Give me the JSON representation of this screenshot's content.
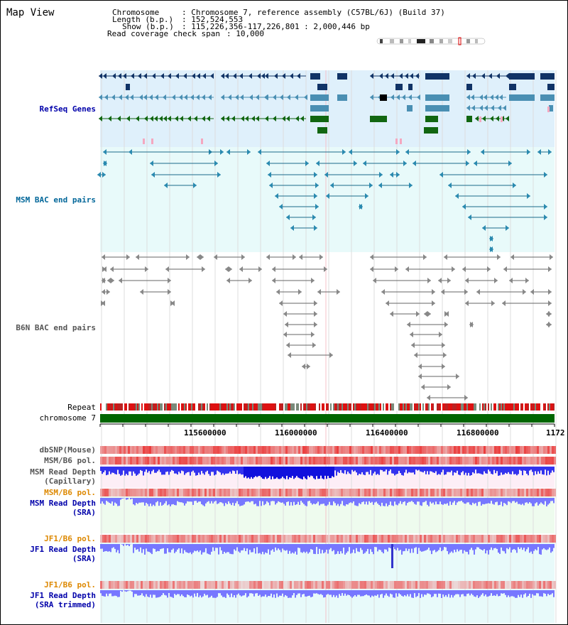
{
  "app": {
    "title": "Map View"
  },
  "header": {
    "chromosome_key": "Chromosome",
    "chromosome_val": ": Chromosome 7, reference assembly (C57BL/6J) (Build 37)",
    "length_key": "Length (b.p.)",
    "length_val": ": 152,524,553",
    "show_key": "Show (b.p.)",
    "show_val": ": 115,226,356-117,226,801 : 2,000,446 bp",
    "coverage_key": "Read coverage check span",
    "coverage_val": ": 10,000"
  },
  "tracks": {
    "refseq": "RefSeq Genes",
    "msm_bac": "MSM BAC end pairs",
    "b6n_bac": "B6N BAC end pairs",
    "repeat": "Repeat",
    "chromosome": "chromosome 7",
    "dbsnp": "dbSNP(Mouse)",
    "msm_pol_1": "MSM/B6 pol.",
    "msm_depth_cap_1": "MSM Read Depth",
    "msm_depth_cap_2": "(Capillary)",
    "msm_pol_2": "MSM/B6 pol.",
    "msm_depth_sra_1": "MSM Read Depth",
    "msm_depth_sra_2": "(SRA)",
    "jf1_pol_1": "JF1/B6 pol.",
    "jf1_depth_sra_1": "JF1 Read Depth",
    "jf1_depth_sra_2": "(SRA)",
    "jf1_pol_2": "JF1/B6 pol.",
    "jf1_depth_trim_1": "JF1 Read Depth",
    "jf1_depth_trim_2": "(SRA trimmed)"
  },
  "axis": {
    "ticks": [
      "115600000",
      "116000000",
      "116400000",
      "116800000",
      "1172"
    ]
  },
  "colors": {
    "refseq_label": "#0000aa",
    "msm_bac_label": "#006699",
    "b6n_bac_label": "#555555",
    "pol_orange": "#dd8800",
    "depth_blue": "#0000aa",
    "refseq_bg": "#dff0fb",
    "bac_bg": "#e8fafa",
    "depth_bar": "#7777ff",
    "chromosome_green": "#006600",
    "repeat_red": "#dd1111"
  }
}
